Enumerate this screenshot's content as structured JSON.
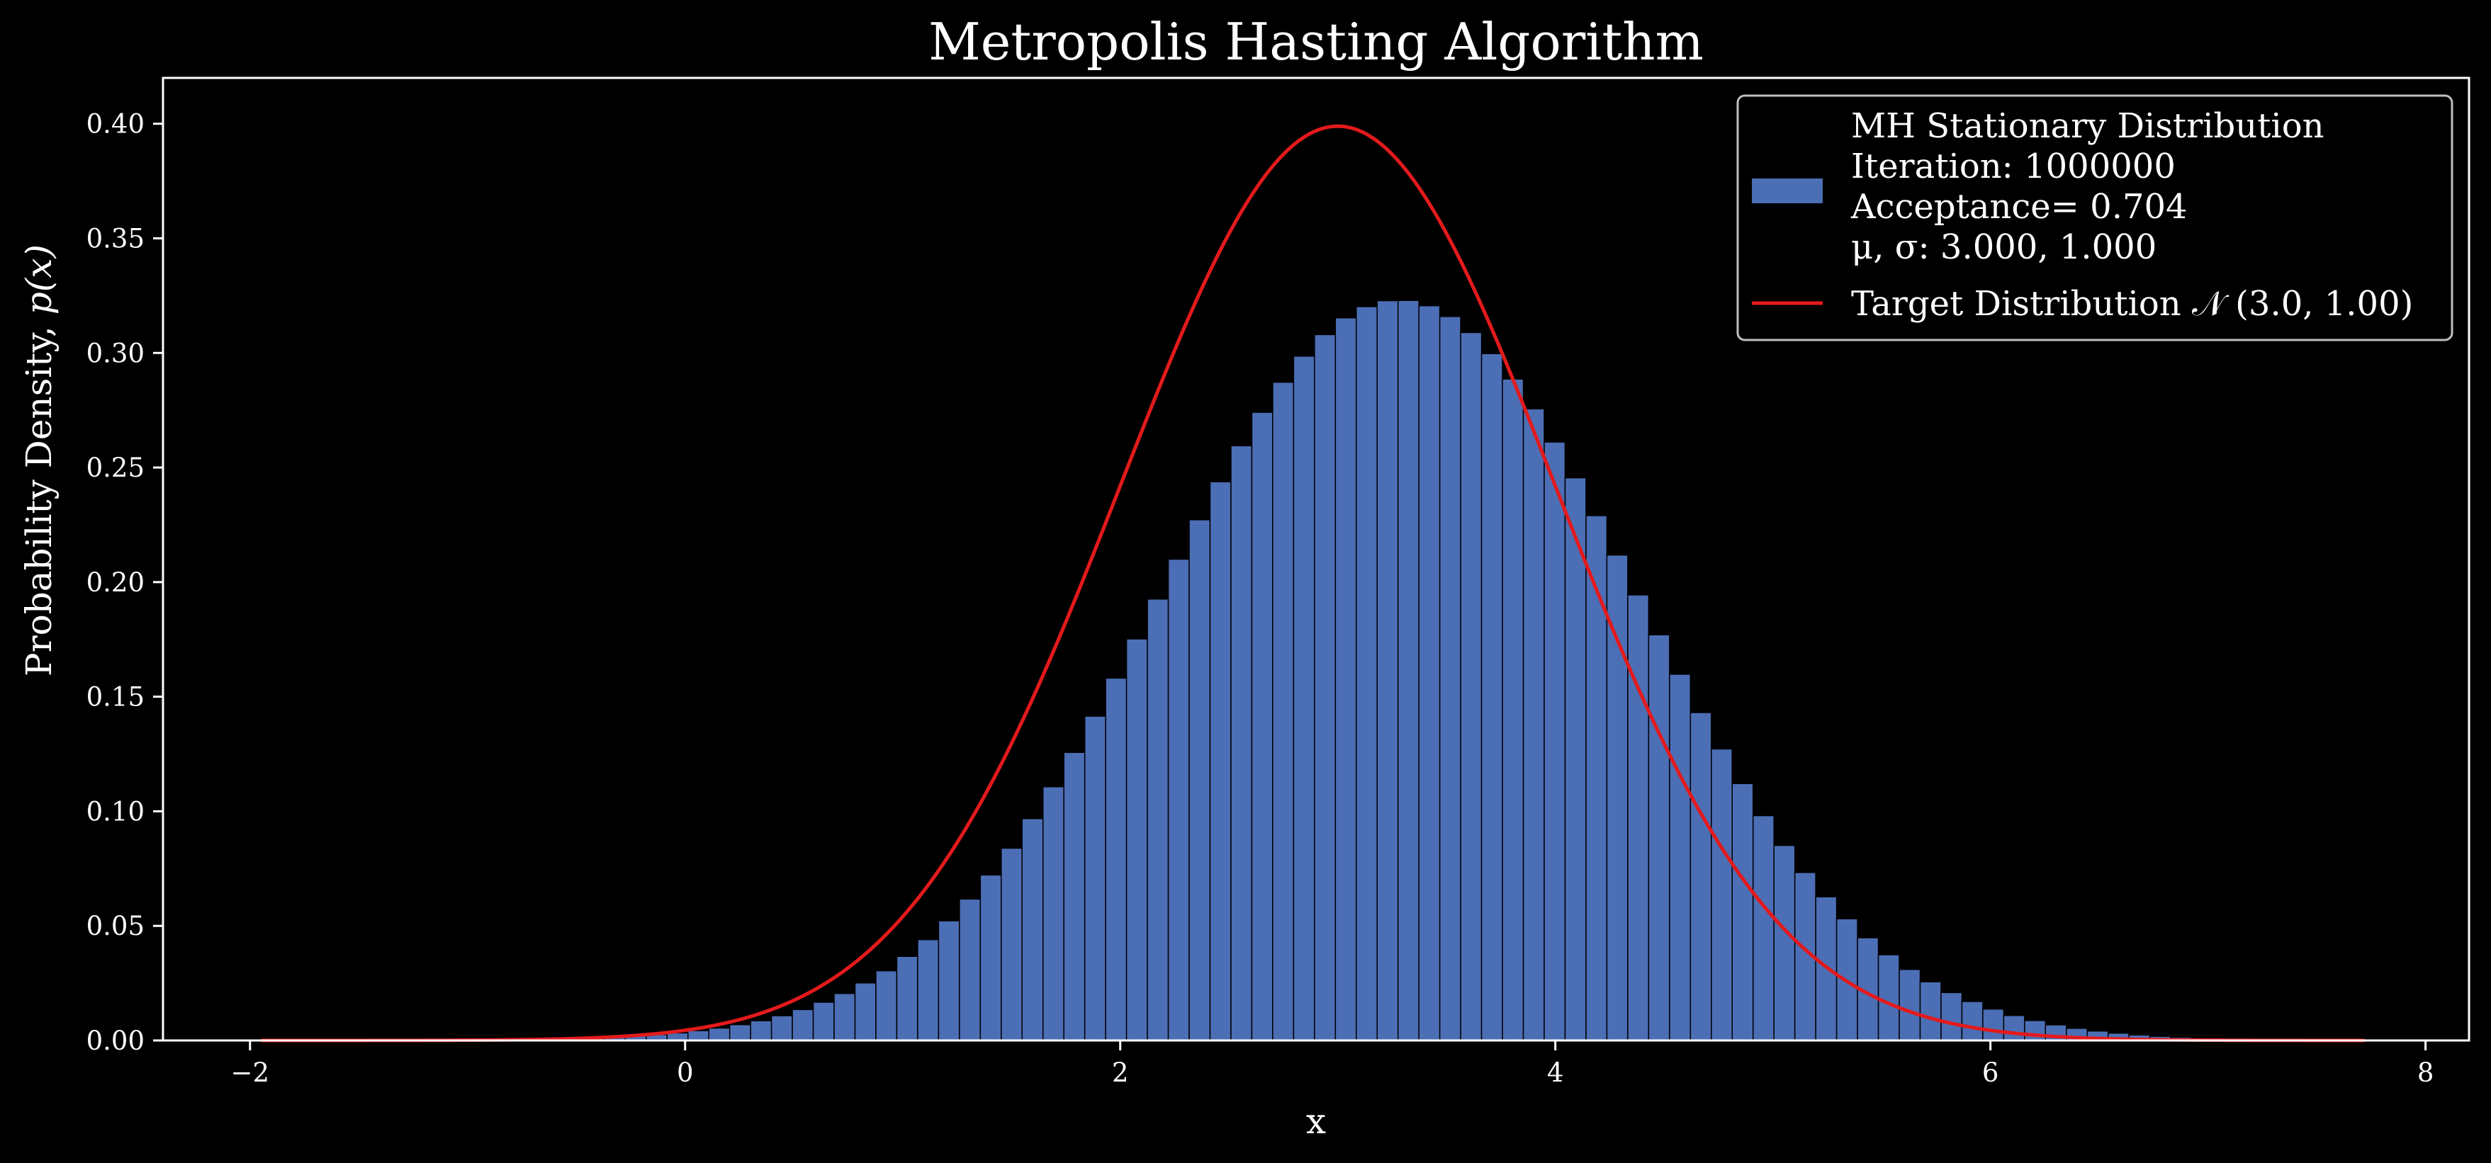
{
  "chart_data": {
    "type": "bar",
    "title": "Metropolis Hasting Algorithm",
    "xlabel": "x",
    "ylabel": "Probability Density, p(x)",
    "xlim": [
      -2.4,
      8.2
    ],
    "ylim": [
      0.0,
      0.42
    ],
    "xticks": [
      -2,
      0,
      2,
      4,
      6,
      8
    ],
    "xtick_labels": [
      "−2",
      "0",
      "2",
      "4",
      "6",
      "8"
    ],
    "yticks": [
      0.0,
      0.05,
      0.1,
      0.15,
      0.2,
      0.25,
      0.3,
      0.35,
      0.4
    ],
    "ytick_labels": [
      "0.00",
      "0.05",
      "0.10",
      "0.15",
      "0.20",
      "0.25",
      "0.30",
      "0.35",
      "0.40"
    ],
    "grid": false,
    "legend_position": "top-right",
    "histogram": {
      "name": "MH Stationary Distribution",
      "legend_lines": [
        "MH Stationary Distribution",
        "Iteration: 1000000",
        "Acceptance= 0.704",
        "μ, σ: 3.000, 1.000"
      ],
      "color": "#4C6EB5",
      "edge_color": "#000000",
      "bin_width": 0.096,
      "bins": [
        [
          -1.907,
          0.0
        ],
        [
          -1.811,
          0.0
        ],
        [
          -1.715,
          0.0
        ],
        [
          -1.619,
          0.0
        ],
        [
          -1.523,
          0.0001
        ],
        [
          -1.427,
          0.0001
        ],
        [
          -1.331,
          0.0001
        ],
        [
          -1.235,
          0.0001
        ],
        [
          -1.139,
          0.0002
        ],
        [
          -1.043,
          0.0002
        ],
        [
          -0.947,
          0.0003
        ],
        [
          -0.851,
          0.0004
        ],
        [
          -0.755,
          0.0005
        ],
        [
          -0.659,
          0.0007
        ],
        [
          -0.563,
          0.0009
        ],
        [
          -0.467,
          0.0012
        ],
        [
          -0.371,
          0.0015
        ],
        [
          -0.275,
          0.002
        ],
        [
          -0.179,
          0.0026
        ],
        [
          -0.083,
          0.0033
        ],
        [
          0.013,
          0.0043
        ],
        [
          0.109,
          0.0054
        ],
        [
          0.205,
          0.0069
        ],
        [
          0.301,
          0.0086
        ],
        [
          0.397,
          0.0108
        ],
        [
          0.493,
          0.0135
        ],
        [
          0.589,
          0.0167
        ],
        [
          0.685,
          0.0205
        ],
        [
          0.781,
          0.0251
        ],
        [
          0.877,
          0.0304
        ],
        [
          0.973,
          0.0367
        ],
        [
          1.069,
          0.044
        ],
        [
          1.165,
          0.0522
        ],
        [
          1.261,
          0.0617
        ],
        [
          1.357,
          0.0722
        ],
        [
          1.453,
          0.0839
        ],
        [
          1.549,
          0.0968
        ],
        [
          1.645,
          0.1107
        ],
        [
          1.741,
          0.1257
        ],
        [
          1.837,
          0.1415
        ],
        [
          1.933,
          0.1581
        ],
        [
          2.029,
          0.1752
        ],
        [
          2.125,
          0.1926
        ],
        [
          2.221,
          0.21
        ],
        [
          2.317,
          0.2272
        ],
        [
          2.413,
          0.2438
        ],
        [
          2.509,
          0.2595
        ],
        [
          2.605,
          0.2741
        ],
        [
          2.701,
          0.2872
        ],
        [
          2.797,
          0.2986
        ],
        [
          2.893,
          0.308
        ],
        [
          2.989,
          0.3153
        ],
        [
          3.085,
          0.3202
        ],
        [
          3.181,
          0.3228
        ],
        [
          3.277,
          0.3229
        ],
        [
          3.373,
          0.3206
        ],
        [
          3.469,
          0.3159
        ],
        [
          3.565,
          0.3089
        ],
        [
          3.661,
          0.2997
        ],
        [
          3.757,
          0.2886
        ],
        [
          3.853,
          0.2756
        ],
        [
          3.949,
          0.2611
        ],
        [
          4.045,
          0.2455
        ],
        [
          4.141,
          0.229
        ],
        [
          4.237,
          0.2118
        ],
        [
          4.333,
          0.1944
        ],
        [
          4.429,
          0.177
        ],
        [
          4.525,
          0.1598
        ],
        [
          4.621,
          0.1431
        ],
        [
          4.717,
          0.1272
        ],
        [
          4.813,
          0.1121
        ],
        [
          4.909,
          0.0981
        ],
        [
          5.005,
          0.0851
        ],
        [
          5.101,
          0.0733
        ],
        [
          5.197,
          0.0627
        ],
        [
          5.293,
          0.0531
        ],
        [
          5.389,
          0.0448
        ],
        [
          5.485,
          0.0374
        ],
        [
          5.581,
          0.031
        ],
        [
          5.677,
          0.0256
        ],
        [
          5.773,
          0.0209
        ],
        [
          5.869,
          0.017
        ],
        [
          5.965,
          0.0137
        ],
        [
          6.061,
          0.0109
        ],
        [
          6.157,
          0.0087
        ],
        [
          6.253,
          0.0068
        ],
        [
          6.349,
          0.0053
        ],
        [
          6.445,
          0.0041
        ],
        [
          6.541,
          0.0032
        ],
        [
          6.637,
          0.0024
        ],
        [
          6.733,
          0.0018
        ],
        [
          6.829,
          0.0014
        ],
        [
          6.925,
          0.001
        ],
        [
          7.021,
          0.0008
        ],
        [
          7.117,
          0.0006
        ],
        [
          7.213,
          0.0004
        ],
        [
          7.309,
          0.0003
        ],
        [
          7.405,
          0.0002
        ],
        [
          7.501,
          0.0002
        ],
        [
          7.597,
          0.0001
        ],
        [
          7.693,
          0.0001
        ]
      ]
    },
    "curve": {
      "name": "Target Distribution 𝒩 (3.0, 1.00)",
      "color": "#e31a1c",
      "mu": 3.0,
      "sigma": 1.0,
      "x_range": [
        -1.95,
        7.72
      ]
    },
    "colors": {
      "background": "#000000",
      "foreground": "#ffffff",
      "legend_frame": "#bfbfbf"
    }
  }
}
